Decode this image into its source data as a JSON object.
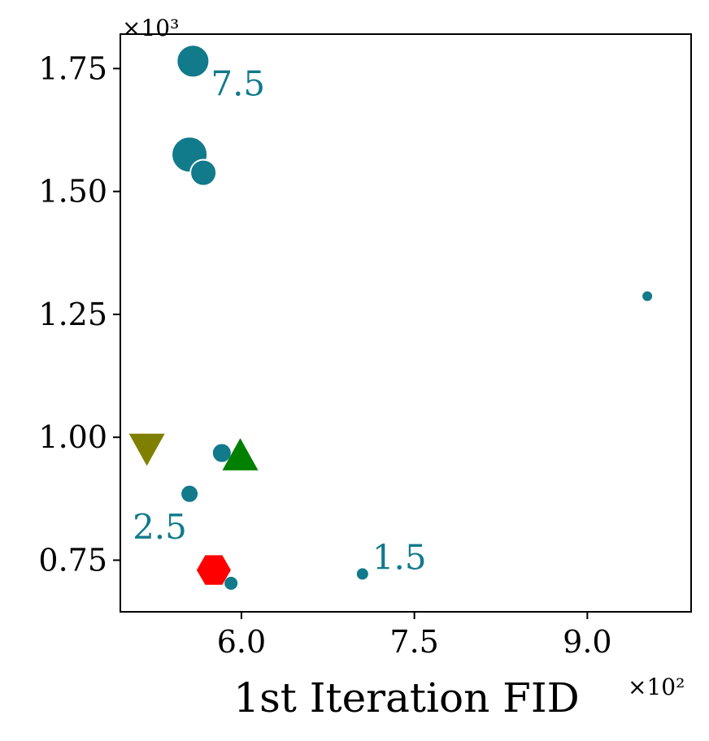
{
  "chart_data": {
    "type": "scatter",
    "title": "",
    "xlabel": "1st Iteration FID",
    "ylabel": "",
    "x_multiplier_label": "×10²",
    "y_multiplier_label": "×10³",
    "x_scale": 100,
    "y_scale": 1000,
    "xlim": [
      4.95,
      9.9
    ],
    "ylim": [
      0.645,
      1.82
    ],
    "xticks": [
      6.0,
      7.5,
      9.0
    ],
    "xtick_labels": [
      "6.0",
      "7.5",
      "9.0"
    ],
    "yticks": [
      0.75,
      1.0,
      1.25,
      1.5,
      1.75
    ],
    "ytick_labels": [
      "0.75",
      "1.00",
      "1.25",
      "1.50",
      "1.75"
    ],
    "grid": false,
    "colors": {
      "main": "#117a8b",
      "triangle_down": "#808000",
      "triangle_up": "#008000",
      "hexagon": "#ff0000"
    },
    "series": [
      {
        "marker": "circle",
        "color": "#117a8b",
        "points": [
          {
            "x": 5.58,
            "y": 1.765,
            "size": 20,
            "label": "7.5"
          },
          {
            "x": 5.55,
            "y": 1.575,
            "size": 22
          },
          {
            "x": 5.67,
            "y": 1.538,
            "size": 16
          },
          {
            "x": 5.83,
            "y": 0.968,
            "size": 12
          },
          {
            "x": 5.55,
            "y": 0.885,
            "size": 11,
            "label": "2.5"
          },
          {
            "x": 5.91,
            "y": 0.703,
            "size": 9
          },
          {
            "x": 7.05,
            "y": 0.722,
            "size": 8,
            "label": "1.5"
          },
          {
            "x": 9.52,
            "y": 1.287,
            "size": 7
          }
        ]
      },
      {
        "marker": "triangle-down",
        "color": "#808000",
        "points": [
          {
            "x": 5.18,
            "y": 0.98
          }
        ]
      },
      {
        "marker": "triangle-up",
        "color": "#008000",
        "points": [
          {
            "x": 5.99,
            "y": 0.96
          }
        ]
      },
      {
        "marker": "hexagon",
        "color": "#ff0000",
        "points": [
          {
            "x": 5.76,
            "y": 0.73
          }
        ]
      }
    ]
  }
}
